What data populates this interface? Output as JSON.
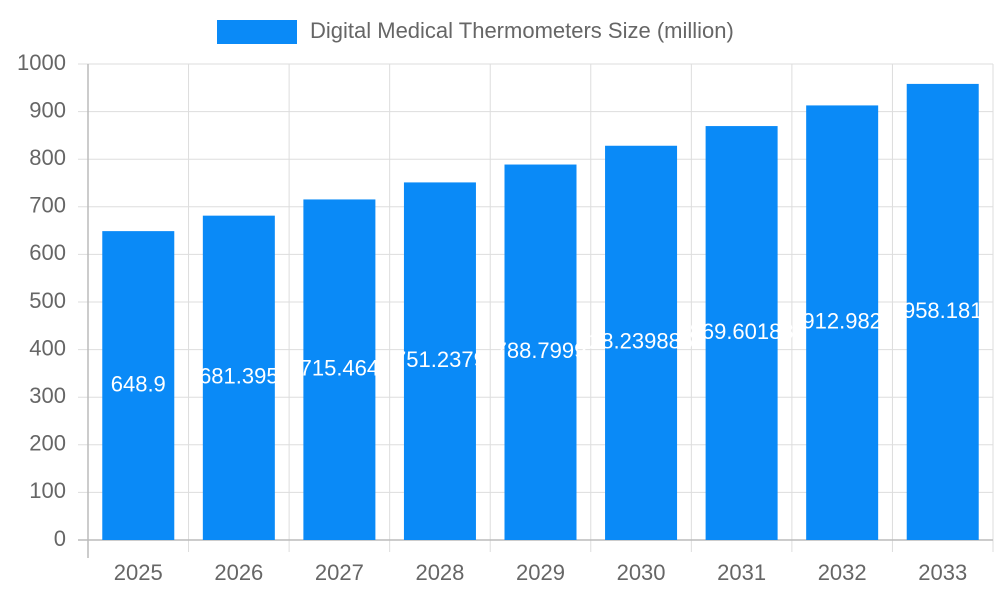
{
  "chart_data": {
    "type": "bar",
    "categories": [
      "2025",
      "2026",
      "2027",
      "2028",
      "2029",
      "2030",
      "2031",
      "2032",
      "2033"
    ],
    "series": [
      {
        "name": "Digital Medical Thermometers Size (million)",
        "color": "#0a8af7",
        "values": [
          648.9,
          681.395,
          715.464,
          751.2379,
          788.7999,
          828.2398862,
          869.60188,
          912.982,
          958.181
        ]
      }
    ],
    "ylim": [
      0,
      1000
    ],
    "yticks": [
      0,
      100,
      200,
      300,
      400,
      500,
      600,
      700,
      800,
      900,
      1000
    ],
    "grid": true,
    "legend": "top"
  }
}
